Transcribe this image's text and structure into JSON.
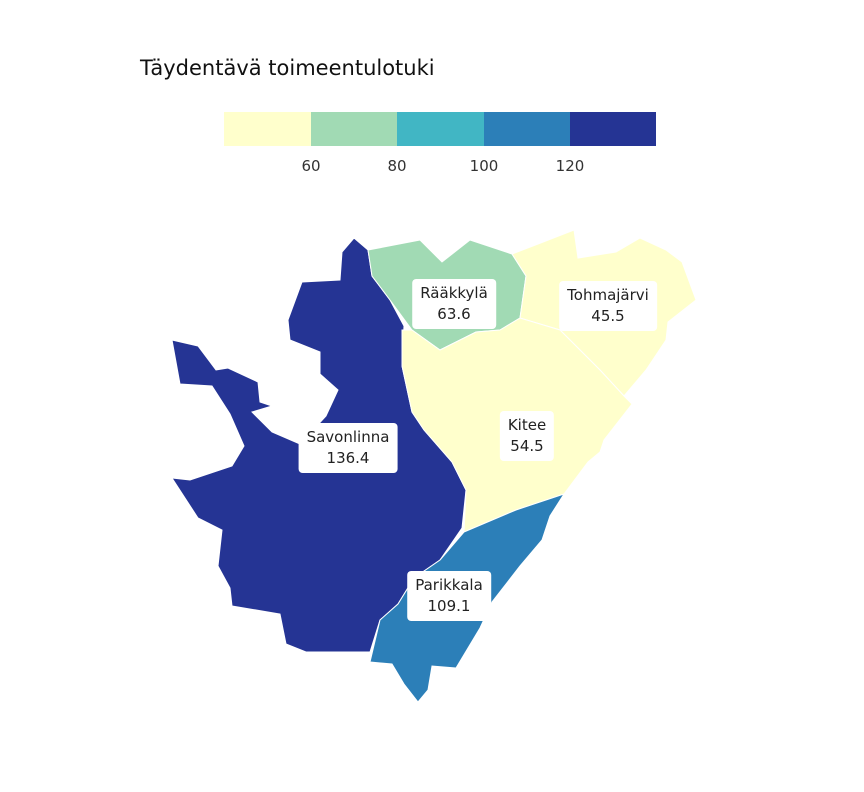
{
  "title": "Täydentävä toimeentulotuki",
  "legend": {
    "ticks": [
      "60",
      "80",
      "100",
      "120"
    ],
    "colors": [
      "#ffffcc",
      "#a1dab4",
      "#41b6c4",
      "#2c7fb8",
      "#253494"
    ]
  },
  "regions": [
    {
      "name": "Savonlinna",
      "value": "136.4",
      "color": "#253494"
    },
    {
      "name": "Rääkkylä",
      "value": "63.6",
      "color": "#a1dab4"
    },
    {
      "name": "Tohmajärvi",
      "value": "45.5",
      "color": "#ffffcc"
    },
    {
      "name": "Kitee",
      "value": "54.5",
      "color": "#ffffcc"
    },
    {
      "name": "Parikkala",
      "value": "109.1",
      "color": "#2c7fb8"
    }
  ]
}
